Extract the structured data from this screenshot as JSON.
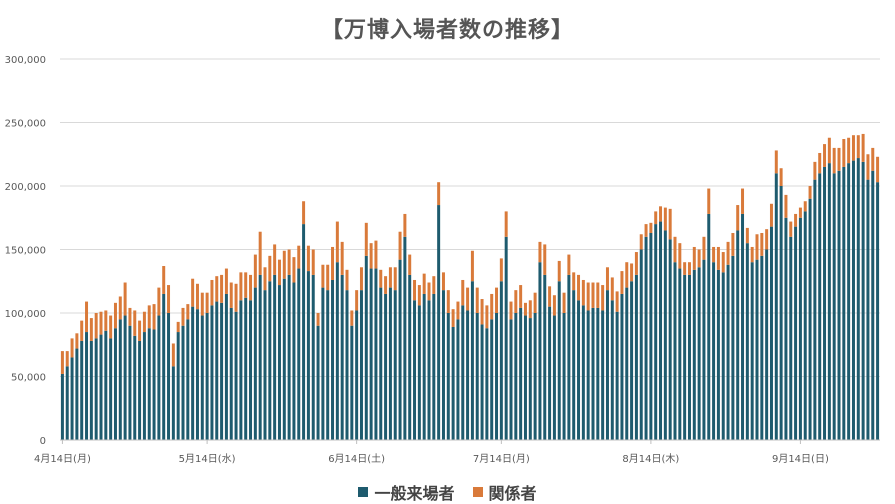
{
  "chart_data": {
    "type": "bar",
    "stacked": true,
    "title": "【万博入場者数の推移】",
    "xlabel": "",
    "ylabel": "",
    "ylim": [
      0,
      300000
    ],
    "yticks": [
      "0",
      "50,000",
      "100,000",
      "150,000",
      "200,000",
      "250,000",
      "300,000"
    ],
    "xtick_labels": [
      "4月14日(月)",
      "5月14日(水)",
      "6月14日(土)",
      "7月14日(月)",
      "8月14日(木)",
      "9月14日(日)"
    ],
    "xtick_indices": [
      0,
      30,
      61,
      91,
      122,
      153
    ],
    "grid": true,
    "legend_position": "bottom",
    "series": [
      {
        "name": "一般来場者",
        "color": "#1e5b6e",
        "values": [
          52000,
          58000,
          65000,
          72000,
          78000,
          85000,
          78000,
          80000,
          83000,
          86000,
          80000,
          88000,
          95000,
          98000,
          90000,
          82000,
          78000,
          85000,
          88000,
          87000,
          98000,
          115000,
          100000,
          58000,
          85000,
          90000,
          95000,
          105000,
          103000,
          98000,
          100000,
          106000,
          109000,
          108000,
          115000,
          104000,
          101000,
          110000,
          112000,
          110000,
          120000,
          130000,
          118000,
          125000,
          130000,
          122000,
          127000,
          130000,
          124000,
          135000,
          170000,
          133000,
          130000,
          90000,
          120000,
          118000,
          126000,
          140000,
          130000,
          118000,
          90000,
          102000,
          118000,
          145000,
          135000,
          135000,
          120000,
          115000,
          120000,
          118000,
          142000,
          160000,
          130000,
          110000,
          106000,
          115000,
          110000,
          115000,
          185000,
          118000,
          100000,
          89000,
          95000,
          106000,
          102000,
          125000,
          100000,
          91000,
          88000,
          95000,
          100000,
          125000,
          160000,
          95000,
          100000,
          104000,
          98000,
          96000,
          100000,
          140000,
          130000,
          105000,
          98000,
          125000,
          100000,
          130000,
          118000,
          110000,
          106000,
          102000,
          104000,
          104000,
          102000,
          118000,
          110000,
          101000,
          115000,
          120000,
          125000,
          130000,
          150000,
          160000,
          163000,
          170000,
          172000,
          165000,
          158000,
          140000,
          135000,
          130000,
          130000,
          134000,
          136000,
          142000,
          178000,
          140000,
          134000,
          132000,
          138000,
          145000,
          165000,
          178000,
          155000,
          140000,
          142000,
          145000,
          150000,
          168000,
          210000,
          200000,
          175000,
          160000,
          168000,
          175000,
          180000,
          190000,
          205000,
          210000,
          215000,
          218000,
          210000,
          212000,
          215000,
          218000,
          220000,
          222000,
          219000,
          205000,
          212000,
          203000
        ]
      },
      {
        "name": "関係者",
        "color": "#d97a3a",
        "values": [
          18000,
          12000,
          15000,
          12000,
          16000,
          24000,
          18000,
          20000,
          18000,
          16000,
          18000,
          20000,
          18000,
          26000,
          14000,
          20000,
          16000,
          16000,
          18000,
          20000,
          22000,
          22000,
          22000,
          18000,
          8000,
          14000,
          12000,
          22000,
          20000,
          18000,
          16000,
          20000,
          20000,
          22000,
          20000,
          20000,
          22000,
          22000,
          20000,
          20000,
          26000,
          34000,
          18000,
          20000,
          24000,
          20000,
          22000,
          20000,
          20000,
          18000,
          18000,
          20000,
          20000,
          10000,
          18000,
          20000,
          26000,
          32000,
          26000,
          16000,
          12000,
          16000,
          18000,
          26000,
          20000,
          22000,
          14000,
          14000,
          16000,
          18000,
          22000,
          18000,
          16000,
          16000,
          16000,
          16000,
          14000,
          14000,
          18000,
          14000,
          18000,
          14000,
          14000,
          20000,
          18000,
          24000,
          20000,
          20000,
          18000,
          20000,
          20000,
          18000,
          20000,
          14000,
          18000,
          18000,
          10000,
          14000,
          16000,
          16000,
          24000,
          16000,
          16000,
          16000,
          16000,
          16000,
          14000,
          20000,
          20000,
          22000,
          20000,
          20000,
          20000,
          18000,
          18000,
          16000,
          18000,
          20000,
          14000,
          18000,
          12000,
          10000,
          8000,
          10000,
          12000,
          18000,
          24000,
          20000,
          20000,
          10000,
          10000,
          18000,
          14000,
          18000,
          20000,
          12000,
          18000,
          16000,
          18000,
          18000,
          20000,
          20000,
          12000,
          12000,
          20000,
          18000,
          16000,
          18000,
          18000,
          14000,
          18000,
          12000,
          10000,
          8000,
          8000,
          10000,
          14000,
          16000,
          18000,
          20000,
          20000,
          18000,
          22000,
          20000,
          20000,
          18000,
          22000,
          20000,
          18000,
          20000
        ]
      }
    ]
  }
}
